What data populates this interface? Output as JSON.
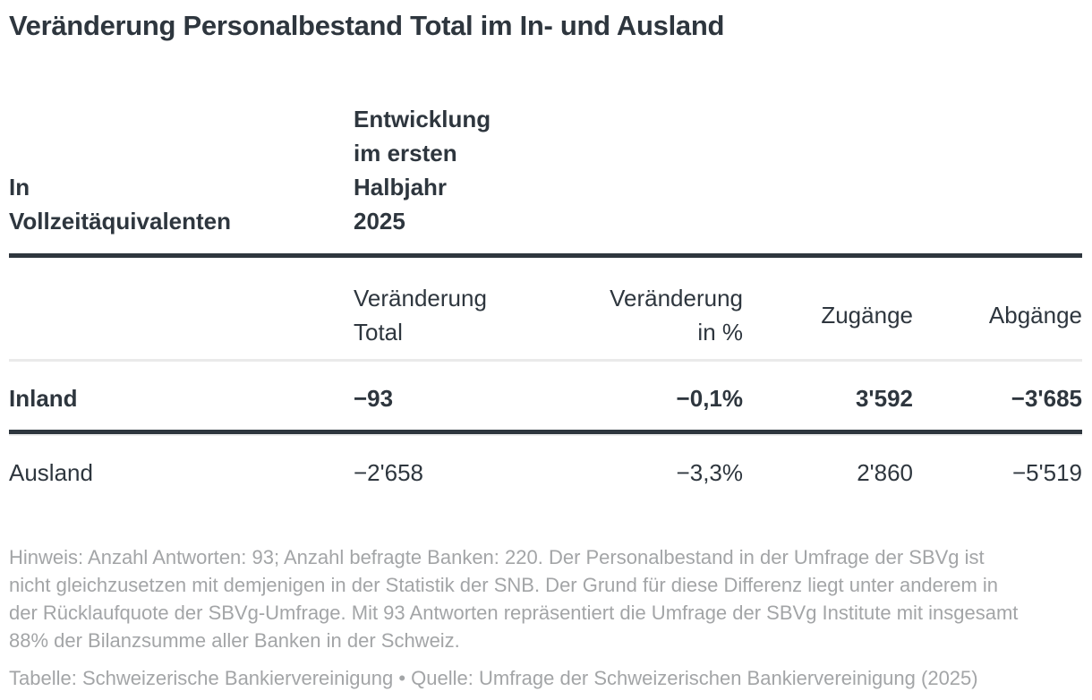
{
  "title": "Veränderung Personalbestand Total im In- und Ausland",
  "table": {
    "col_header_left": "In\nVollzeitäquivalenten",
    "col_header_right": "Entwicklung\nim ersten\nHalbjahr\n2025",
    "subheaders": {
      "veraenderung_total": "Veränderung\nTotal",
      "veraenderung_pct": "Veränderung\nin %",
      "zugaenge": "Zugänge",
      "abgaenge": "Abgänge"
    },
    "rows": [
      {
        "label": "Inland",
        "veraenderung_total": "−93",
        "veraenderung_pct": "−0,1%",
        "zugaenge": "3'592",
        "abgaenge": "−3'685"
      },
      {
        "label": "Ausland",
        "veraenderung_total": "−2'658",
        "veraenderung_pct": "−3,3%",
        "zugaenge": "2'860",
        "abgaenge": "−5'519"
      }
    ]
  },
  "notes": "Hinweis: Anzahl Antworten: 93; Anzahl befragte Banken: 220. Der Personalbestand in der Umfrage der SBVg ist nicht gleichzusetzen mit demjenigen in der Statistik der SNB. Der Grund für diese Differenz liegt unter anderem in der Rücklaufquote der SBVg-Umfrage. Mit 93 Antworten repräsentiert die Umfrage der SBVg Institute mit insgesamt 88% der Bilanzsumme aller Banken in der Schweiz.",
  "attribution": "Tabelle: Schweizerische Bankiervereinigung • Quelle: Umfrage der Schweizerischen Bankiervereinigung (2025)",
  "chart_data": {
    "type": "table",
    "title": "Veränderung Personalbestand Total im In- und Ausland",
    "row_label_header": "In Vollzeitäquivalenten",
    "period": "Entwicklung im ersten Halbjahr 2025",
    "columns": [
      "Veränderung Total",
      "Veränderung in %",
      "Zugänge",
      "Abgänge"
    ],
    "rows": [
      {
        "label": "Inland",
        "veraenderung_total": -93,
        "veraenderung_in_pct": -0.1,
        "zugaenge": 3592,
        "abgaenge": -3685,
        "emphasized": true
      },
      {
        "label": "Ausland",
        "veraenderung_total": -2658,
        "veraenderung_in_pct": -3.3,
        "zugaenge": 2860,
        "abgaenge": -5519,
        "emphasized": false
      }
    ],
    "number_format": "Swiss apostrophe thousands separator, comma decimal, U+2212 minus",
    "notes": "Hinweis: Anzahl Antworten: 93; Anzahl befragte Banken: 220. Der Personalbestand in der Umfrage der SBVg ist nicht gleichzusetzen mit demjenigen in der Statistik der SNB. Der Grund für diese Differenz liegt unter anderem in der Rücklaufquote der SBVg-Umfrage. Mit 93 Antworten repräsentiert die Umfrage der SBVg Institute mit insgesamt 88% der Bilanzsumme aller Banken in der Schweiz.",
    "table_credit": "Schweizerische Bankiervereinigung",
    "source": "Umfrage der Schweizerischen Bankiervereinigung (2025)"
  },
  "colors": {
    "text_dark": "#2e363e",
    "rule_dark": "#2e363e",
    "rule_light": "#eaeaea",
    "note_gray": "#a3a5a7",
    "background": "#ffffff"
  }
}
